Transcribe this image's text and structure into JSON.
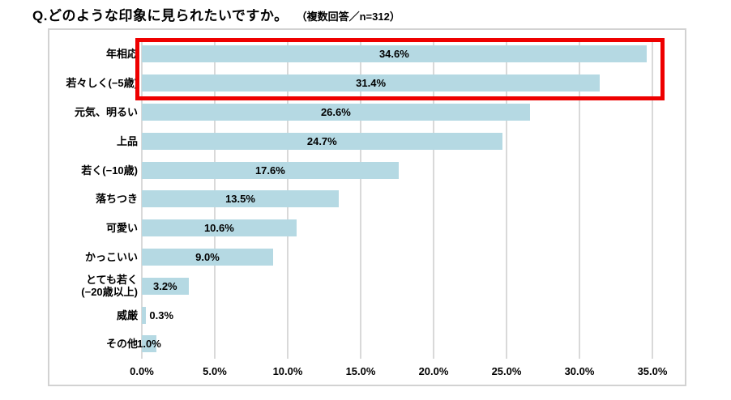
{
  "title": {
    "main": "Q.どのような印象に見られたいですか。",
    "note": "（複数回答／n=312）"
  },
  "chart_data": {
    "type": "bar",
    "orientation": "horizontal",
    "title": "Q.どのような印象に見られたいですか。（複数回答／n=312）",
    "n": 312,
    "categories": [
      "年相応",
      "若々しく(−5歳)",
      "元気、明るい",
      "上品",
      "若く(−10歳)",
      "落ちつき",
      "可愛い",
      "かっこいい",
      "とても若く\n(−20歳以上)",
      "威厳",
      "その他"
    ],
    "values": [
      34.6,
      31.4,
      26.6,
      24.7,
      17.6,
      13.5,
      10.6,
      9.0,
      3.2,
      0.3,
      1.0
    ],
    "value_labels": [
      "34.6%",
      "31.4%",
      "26.6%",
      "24.7%",
      "17.6%",
      "13.5%",
      "10.6%",
      "9.0%",
      "3.2%",
      "0.3%",
      "1.0%"
    ],
    "x_ticks": [
      "0.0%",
      "5.0%",
      "10.0%",
      "15.0%",
      "20.0%",
      "25.0%",
      "30.0%",
      "35.0%"
    ],
    "x_tick_values": [
      0,
      5,
      10,
      15,
      20,
      25,
      30,
      35
    ],
    "xlim": [
      0,
      37.3
    ],
    "grid": true,
    "legend": false,
    "highlight": {
      "rows": [
        0,
        1
      ],
      "color": "#ee0000"
    },
    "colors": {
      "bar": "#b5d9e3",
      "grid": "#d9d9d9",
      "frame": "#d2d2d2",
      "text": "#000000",
      "background": "#ffffff"
    }
  }
}
